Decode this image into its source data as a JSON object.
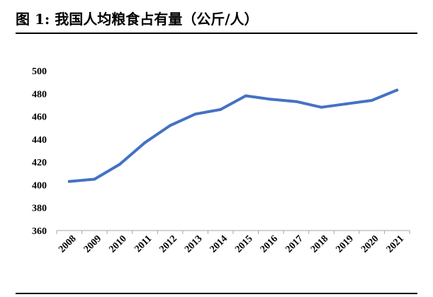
{
  "figure": {
    "title": "图 1:  我国人均粮食占有量（公斤/人）"
  },
  "chart_data": {
    "type": "line",
    "title": "",
    "xlabel": "",
    "ylabel": "",
    "categories": [
      "2008",
      "2009",
      "2010",
      "2011",
      "2012",
      "2013",
      "2014",
      "2015",
      "2016",
      "2017",
      "2018",
      "2019",
      "2020",
      "2021"
    ],
    "series": [
      {
        "values": [
          403,
          405,
          418,
          437,
          452,
          462,
          466,
          478,
          475,
          473,
          468,
          471,
          474,
          483
        ]
      }
    ],
    "ylim": [
      360,
      500
    ],
    "yticks": [
      360,
      380,
      400,
      420,
      440,
      460,
      480,
      500
    ],
    "grid": false,
    "legend": "none",
    "line_color": "#4472C4",
    "axis_color": "#A6A6A6"
  }
}
